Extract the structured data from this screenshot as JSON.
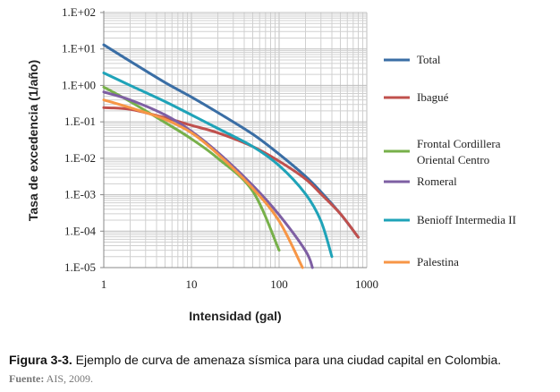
{
  "chart_data": {
    "type": "line",
    "xscale": "log",
    "yscale": "log",
    "xlabel": "Intensidad (gal)",
    "ylabel": "Tasa de excedencia (1/año)",
    "xlim": [
      1,
      1000
    ],
    "ylim": [
      1e-05,
      100
    ],
    "xticks": [
      "1",
      "10",
      "100",
      "1000"
    ],
    "yticks": [
      "1.E+02",
      "1.E+01",
      "1.E+00",
      "1.E-01",
      "1.E-02",
      "1.E-03",
      "1.E-04",
      "1.E-05"
    ],
    "grid": true,
    "legend_position": "right",
    "series": [
      {
        "name": "Total",
        "color": "#3a6ea5",
        "x": [
          1,
          2,
          5,
          10,
          20,
          50,
          100,
          200,
          300,
          500,
          800
        ],
        "y": [
          13,
          4.6,
          1.2,
          0.48,
          0.18,
          0.046,
          0.013,
          0.0032,
          0.0012,
          0.0003,
          6.8e-05
        ]
      },
      {
        "name": "Ibagué",
        "color": "#c0504d",
        "x": [
          1,
          2,
          5,
          10,
          20,
          50,
          100,
          200,
          300,
          500,
          800
        ],
        "y": [
          0.245,
          0.22,
          0.13,
          0.08,
          0.05,
          0.021,
          0.0083,
          0.0027,
          0.00105,
          0.0003,
          6.8e-05
        ]
      },
      {
        "name": "Frontal Cordillera Oriental Centro",
        "color": "#77b04a",
        "x": [
          1,
          2,
          5,
          10,
          20,
          50,
          100
        ],
        "y": [
          0.9,
          0.36,
          0.096,
          0.034,
          0.01,
          0.00125,
          3e-05
        ]
      },
      {
        "name": "Romeral",
        "color": "#7e5fa3",
        "x": [
          1,
          2,
          5,
          10,
          20,
          50,
          100,
          200,
          240
        ],
        "y": [
          0.66,
          0.4,
          0.155,
          0.055,
          0.0145,
          0.0018,
          0.00028,
          2.9e-05,
          1e-05
        ]
      },
      {
        "name": "Benioff Intermedia II",
        "color": "#1fa3b8",
        "x": [
          1,
          2,
          5,
          10,
          20,
          50,
          100,
          200,
          300,
          400
        ],
        "y": [
          2.2,
          1.0,
          0.36,
          0.155,
          0.066,
          0.021,
          0.0063,
          0.00105,
          0.00019,
          2e-05
        ]
      },
      {
        "name": "Palestina",
        "color": "#f79646",
        "x": [
          1,
          2,
          5,
          10,
          20,
          50,
          100,
          185
        ],
        "y": [
          0.4,
          0.245,
          0.117,
          0.05,
          0.013,
          0.0015,
          0.00019,
          1e-05
        ]
      }
    ]
  },
  "legend_lines": {
    "frontal_1": "Frontal Cordillera",
    "frontal_2": "Oriental Centro"
  },
  "caption": {
    "label": "Figura 3-3.",
    "text": " Ejemplo de curva de amenaza sísmica para una ciudad capital en Colombia.",
    "source_label": "Fuente:",
    "source_text": " AIS, 2009."
  }
}
